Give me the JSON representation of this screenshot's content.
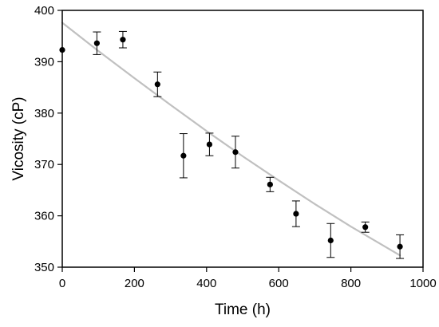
{
  "chart_data": {
    "type": "scatter",
    "xlabel": "Time (h)",
    "ylabel": "Vicosity (cP)",
    "xlim": [
      0,
      1000
    ],
    "ylim": [
      350,
      400
    ],
    "xticks": [
      0,
      200,
      400,
      600,
      800,
      1000
    ],
    "yticks": [
      350,
      360,
      370,
      380,
      390,
      400
    ],
    "grid": false,
    "series": [
      {
        "style": "points-with-error-bars",
        "color": "#000000",
        "points": [
          {
            "x": 0,
            "y": 392.3,
            "err": 0
          },
          {
            "x": 96,
            "y": 393.6,
            "err": 2.2
          },
          {
            "x": 168,
            "y": 394.3,
            "err": 1.6
          },
          {
            "x": 264,
            "y": 385.6,
            "err": 2.4
          },
          {
            "x": 336,
            "y": 371.7,
            "err": 4.3
          },
          {
            "x": 408,
            "y": 373.9,
            "err": 2.2
          },
          {
            "x": 480,
            "y": 372.4,
            "err": 3.1
          },
          {
            "x": 576,
            "y": 366.1,
            "err": 1.4
          },
          {
            "x": 648,
            "y": 360.4,
            "err": 2.5
          },
          {
            "x": 744,
            "y": 355.2,
            "err": 3.3
          },
          {
            "x": 840,
            "y": 357.8,
            "err": 1.0
          },
          {
            "x": 936,
            "y": 354.0,
            "err": 2.3
          }
        ]
      },
      {
        "style": "fit-curve",
        "color": "#c0c0c0",
        "x": [
          0,
          100,
          200,
          300,
          400,
          500,
          600,
          700,
          800,
          936
        ],
        "y": [
          397.6,
          392.1,
          386.8,
          381.6,
          376.5,
          371.6,
          366.9,
          362.3,
          357.9,
          352.3
        ]
      }
    ]
  }
}
